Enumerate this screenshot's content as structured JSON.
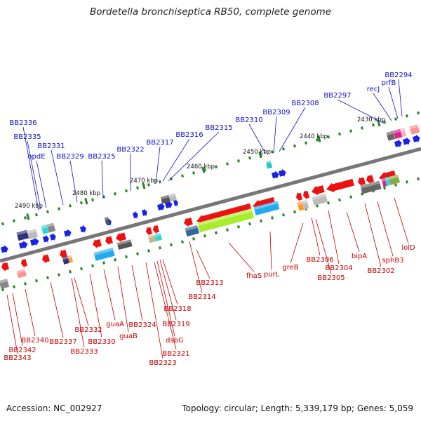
{
  "title": "Bordetella bronchiseptica RB50, complete genome",
  "footer": {
    "accession": "Accession: NC_002927",
    "summary": "Topology: circular; Length: 5,339,179 bp; Genes: 5,059"
  },
  "colors": {
    "top_labels": "#1010c8",
    "bottom_labels": "#c80000",
    "forward_gene": "#1a22e6",
    "reverse_gene": "#ee1111",
    "axis": "#777777",
    "ticks": "#228822"
  },
  "scale_labels": [
    "2430 kbp",
    "2440 kbp",
    "2450 kbp",
    "2460 kbp",
    "2470 kbp",
    "2480 kbp",
    "2490 kbp"
  ],
  "top_gene_labels": [
    "BB2294",
    "prfB",
    "recJ",
    "BB2297",
    "BB2308",
    "BB2309",
    "BB2310",
    "BB2315",
    "BB2316",
    "BB2317",
    "BB2322",
    "BB2325",
    "BB2329",
    "BB2331",
    "opdE",
    "BB2335",
    "BB2336"
  ],
  "bottom_gene_labels": [
    "lolD",
    "sphB3",
    "bipA",
    "BB2302",
    "BB2304",
    "BB2305",
    "BB2306",
    "greB",
    "purL",
    "fhaS",
    "BB2313",
    "BB2314",
    "BB2318",
    "BB2319",
    "dsbG",
    "BB2321",
    "BB2323",
    "BB2324",
    "guaB",
    "guaA",
    "BB2330",
    "BB2332",
    "BB2333",
    "BB2337",
    "BB2340",
    "BB2342",
    "BB2343"
  ]
}
